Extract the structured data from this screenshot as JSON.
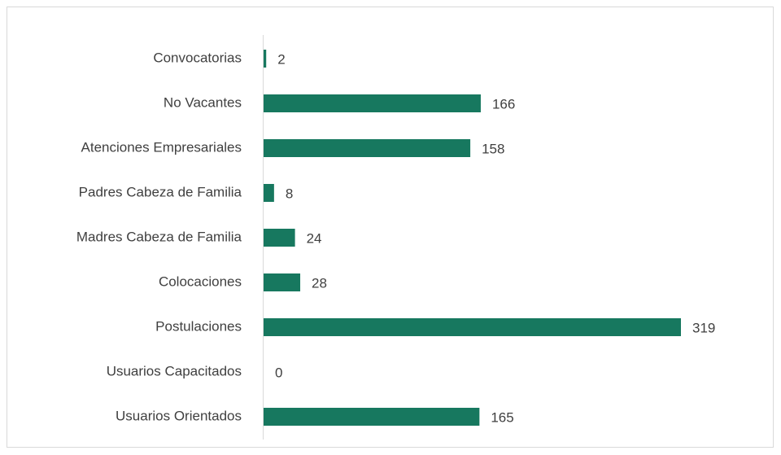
{
  "chart_data": {
    "type": "bar",
    "orientation": "horizontal",
    "categories": [
      "Convocatorias",
      "No Vacantes",
      "Atenciones Empresariales",
      "Padres Cabeza de Familia",
      "Madres Cabeza de Familia",
      "Colocaciones",
      "Postulaciones",
      "Usuarios Capacitados",
      "Usuarios Orientados"
    ],
    "values": [
      2,
      166,
      158,
      8,
      24,
      28,
      319,
      0,
      165
    ],
    "color": "#17785f"
  }
}
